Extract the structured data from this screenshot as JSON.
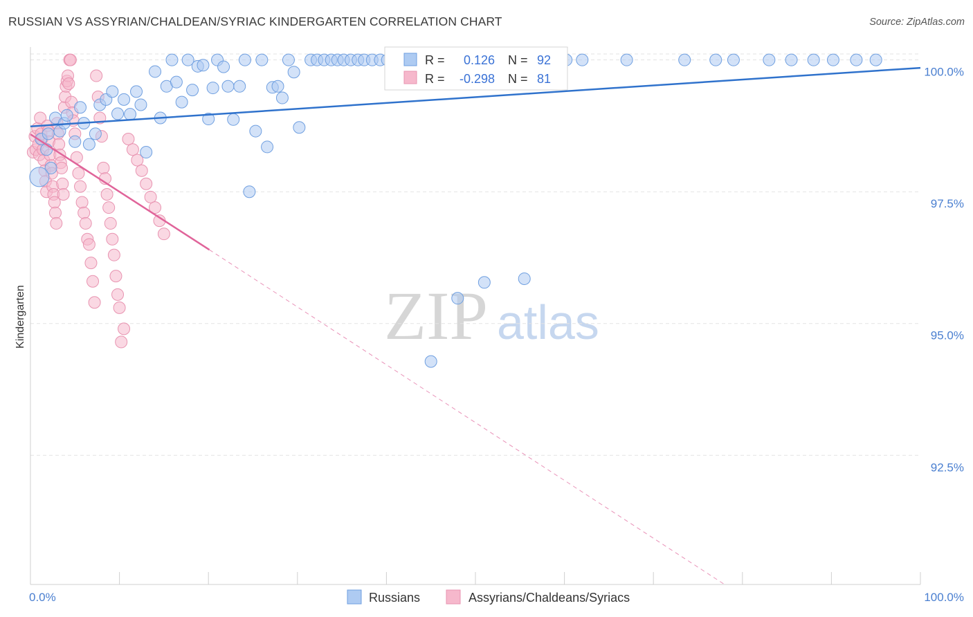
{
  "header": {
    "title": "RUSSIAN VS ASSYRIAN/CHALDEAN/SYRIAC KINDERGARTEN CORRELATION CHART",
    "source": "Source: ZipAtlas.com"
  },
  "watermark": {
    "zip": "ZIP",
    "atlas": "atlas"
  },
  "colors": {
    "russians_fill": "#aecbf2",
    "russians_stroke": "#6f9fe0",
    "russians_line": "#2f72cc",
    "assyrians_fill": "#f6b8cc",
    "assyrians_stroke": "#e893b0",
    "assyrians_line": "#e0649a",
    "tick_color": "#4a7fd0",
    "grid": "#e3e3e3"
  },
  "legend": {
    "r_label": "R =",
    "n_label": "N =",
    "russians_r": "0.126",
    "russians_n": "92",
    "assyrians_r": "-0.298",
    "assyrians_n": "81"
  },
  "bottom_legend": {
    "russians": "Russians",
    "assyrians": "Assyrians/Chaldeans/Syriacs"
  },
  "chart_data": {
    "type": "scatter",
    "title": "RUSSIAN VS ASSYRIAN/CHALDEAN/SYRIAC KINDERGARTEN CORRELATION CHART",
    "xlabel": "",
    "ylabel": "Kindergarten",
    "xlim": [
      0,
      100
    ],
    "ylim": [
      90.05,
      100.35
    ],
    "x_tick_labels": [
      "0.0%",
      "100.0%"
    ],
    "y_ticks": [
      92.5,
      95.0,
      97.5,
      100.0
    ],
    "y_tick_labels": [
      "92.5%",
      "95.0%",
      "97.5%",
      "100.0%"
    ],
    "grid": true,
    "series": [
      {
        "name": "Russians",
        "r": 0.126,
        "n": 92,
        "trend": {
          "x": [
            0,
            100
          ],
          "y": [
            98.74,
            99.85
          ]
        },
        "points": [
          [
            1.2,
            98.5
          ],
          [
            1.8,
            98.3
          ],
          [
            2.0,
            98.6
          ],
          [
            2.3,
            97.95
          ],
          [
            2.8,
            98.9
          ],
          [
            3.3,
            98.65
          ],
          [
            3.8,
            98.8
          ],
          [
            4.1,
            98.95
          ],
          [
            5.0,
            98.45
          ],
          [
            5.6,
            99.1
          ],
          [
            6.0,
            98.8
          ],
          [
            6.6,
            98.4
          ],
          [
            7.3,
            98.6
          ],
          [
            7.8,
            99.15
          ],
          [
            8.5,
            99.25
          ],
          [
            9.2,
            99.4
          ],
          [
            9.8,
            98.98
          ],
          [
            10.5,
            99.25
          ],
          [
            11.2,
            98.97
          ],
          [
            11.9,
            99.4
          ],
          [
            12.4,
            99.15
          ],
          [
            13.0,
            98.25
          ],
          [
            14.0,
            99.78
          ],
          [
            14.6,
            98.9
          ],
          [
            15.3,
            99.5
          ],
          [
            15.9,
            100.0
          ],
          [
            16.4,
            99.58
          ],
          [
            17.0,
            99.2
          ],
          [
            17.7,
            100.0
          ],
          [
            18.2,
            99.43
          ],
          [
            18.8,
            99.88
          ],
          [
            19.4,
            99.9
          ],
          [
            20.0,
            98.88
          ],
          [
            20.5,
            99.47
          ],
          [
            21.0,
            100.0
          ],
          [
            21.7,
            99.87
          ],
          [
            22.2,
            99.5
          ],
          [
            22.8,
            98.87
          ],
          [
            23.5,
            99.5
          ],
          [
            24.1,
            100.0
          ],
          [
            24.6,
            97.5
          ],
          [
            25.3,
            98.65
          ],
          [
            26.0,
            100.0
          ],
          [
            26.6,
            98.35
          ],
          [
            27.2,
            99.48
          ],
          [
            27.8,
            99.5
          ],
          [
            28.3,
            99.28
          ],
          [
            29.0,
            100.0
          ],
          [
            29.6,
            99.77
          ],
          [
            30.2,
            98.72
          ],
          [
            31.5,
            100.0
          ],
          [
            32.2,
            100.0
          ],
          [
            33.0,
            100.0
          ],
          [
            33.8,
            100.0
          ],
          [
            34.5,
            100.0
          ],
          [
            35.2,
            100.0
          ],
          [
            36.0,
            100.0
          ],
          [
            36.8,
            100.0
          ],
          [
            37.5,
            100.0
          ],
          [
            38.4,
            100.0
          ],
          [
            39.3,
            100.0
          ],
          [
            40.1,
            100.0
          ],
          [
            41.0,
            100.0
          ],
          [
            41.8,
            100.0
          ],
          [
            42.6,
            100.0
          ],
          [
            43.5,
            100.0
          ],
          [
            44.3,
            100.0
          ],
          [
            45.1,
            100.0
          ],
          [
            46.0,
            100.0
          ],
          [
            46.9,
            100.0
          ],
          [
            48.0,
            100.0
          ],
          [
            50.2,
            100.0
          ],
          [
            51.4,
            100.0
          ],
          [
            54.5,
            100.0
          ],
          [
            56.3,
            100.0
          ],
          [
            58.1,
            100.0
          ],
          [
            60.2,
            100.0
          ],
          [
            62.0,
            100.0
          ],
          [
            67.0,
            100.0
          ],
          [
            73.5,
            100.0
          ],
          [
            77.0,
            100.0
          ],
          [
            79.0,
            100.0
          ],
          [
            83.0,
            100.0
          ],
          [
            85.5,
            100.0
          ],
          [
            88.0,
            100.0
          ],
          [
            90.2,
            100.0
          ],
          [
            92.8,
            100.0
          ],
          [
            95.0,
            100.0
          ],
          [
            45.0,
            94.28
          ],
          [
            48.0,
            95.48
          ],
          [
            51.0,
            95.78
          ],
          [
            55.5,
            95.85
          ]
        ]
      },
      {
        "name": "Assyrians/Chaldeans/Syriacs",
        "r": -0.298,
        "n": 81,
        "trend": {
          "x": [
            0,
            20.1
          ],
          "y": [
            98.59,
            96.4
          ]
        },
        "trend_dashed": {
          "x": [
            20.1,
            78.0
          ],
          "y": [
            96.4,
            90.05
          ]
        },
        "points": [
          [
            0.3,
            98.25
          ],
          [
            0.5,
            98.55
          ],
          [
            0.6,
            98.3
          ],
          [
            0.8,
            98.7
          ],
          [
            0.9,
            98.4
          ],
          [
            1.0,
            98.2
          ],
          [
            1.1,
            98.9
          ],
          [
            1.2,
            98.6
          ],
          [
            1.3,
            98.5
          ],
          [
            1.4,
            98.3
          ],
          [
            1.5,
            98.1
          ],
          [
            1.6,
            97.9
          ],
          [
            1.7,
            97.7
          ],
          [
            1.8,
            97.5
          ],
          [
            1.9,
            98.75
          ],
          [
            2.0,
            98.65
          ],
          [
            2.1,
            98.45
          ],
          [
            2.2,
            98.2
          ],
          [
            2.3,
            98.0
          ],
          [
            2.4,
            97.85
          ],
          [
            2.5,
            97.6
          ],
          [
            2.6,
            97.45
          ],
          [
            2.7,
            97.3
          ],
          [
            2.8,
            97.1
          ],
          [
            2.9,
            96.9
          ],
          [
            3.0,
            98.8
          ],
          [
            3.1,
            98.6
          ],
          [
            3.2,
            98.4
          ],
          [
            3.3,
            98.2
          ],
          [
            3.4,
            98.05
          ],
          [
            3.5,
            97.95
          ],
          [
            3.6,
            97.65
          ],
          [
            3.7,
            97.45
          ],
          [
            3.8,
            99.1
          ],
          [
            3.9,
            99.3
          ],
          [
            4.0,
            99.5
          ],
          [
            4.1,
            99.6
          ],
          [
            4.2,
            99.7
          ],
          [
            4.3,
            99.55
          ],
          [
            4.4,
            100.0
          ],
          [
            4.5,
            100.0
          ],
          [
            4.6,
            99.2
          ],
          [
            4.7,
            99.0
          ],
          [
            4.8,
            98.85
          ],
          [
            5.0,
            98.6
          ],
          [
            5.2,
            98.15
          ],
          [
            5.4,
            97.85
          ],
          [
            5.6,
            97.6
          ],
          [
            5.8,
            97.3
          ],
          [
            6.0,
            97.1
          ],
          [
            6.2,
            96.9
          ],
          [
            6.4,
            96.6
          ],
          [
            6.6,
            96.5
          ],
          [
            6.8,
            96.15
          ],
          [
            7.0,
            95.8
          ],
          [
            7.2,
            95.4
          ],
          [
            7.4,
            99.7
          ],
          [
            7.6,
            99.3
          ],
          [
            7.8,
            98.9
          ],
          [
            8.0,
            98.55
          ],
          [
            8.2,
            97.95
          ],
          [
            8.4,
            97.75
          ],
          [
            8.6,
            97.45
          ],
          [
            8.8,
            97.2
          ],
          [
            9.0,
            96.9
          ],
          [
            9.2,
            96.6
          ],
          [
            9.4,
            96.3
          ],
          [
            9.6,
            95.9
          ],
          [
            9.8,
            95.55
          ],
          [
            10.0,
            95.3
          ],
          [
            10.2,
            94.65
          ],
          [
            10.5,
            94.9
          ],
          [
            11.0,
            98.5
          ],
          [
            11.5,
            98.3
          ],
          [
            12.0,
            98.1
          ],
          [
            12.5,
            97.9
          ],
          [
            13.0,
            97.65
          ],
          [
            13.5,
            97.4
          ],
          [
            14.0,
            97.2
          ],
          [
            14.5,
            96.95
          ],
          [
            15.0,
            96.7
          ]
        ]
      }
    ]
  }
}
